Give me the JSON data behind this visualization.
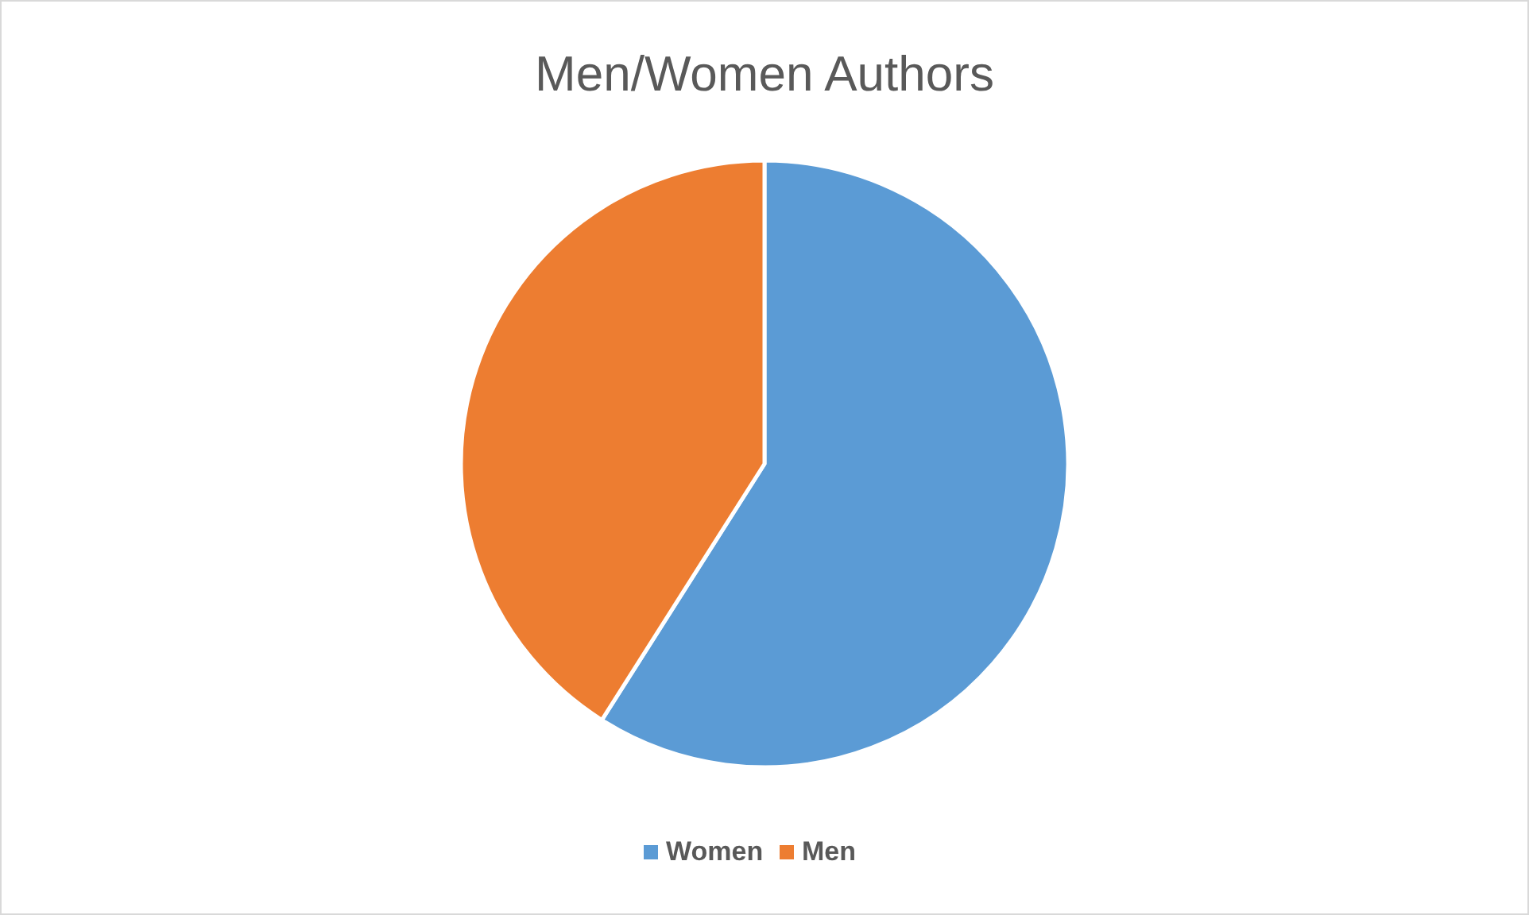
{
  "chart_data": {
    "type": "pie",
    "title": "Men/Women Authors",
    "categories": [
      "Women",
      "Men"
    ],
    "values": [
      59,
      41
    ],
    "colors": [
      "#5b9bd5",
      "#ed7d31"
    ],
    "legend": "bottom"
  }
}
